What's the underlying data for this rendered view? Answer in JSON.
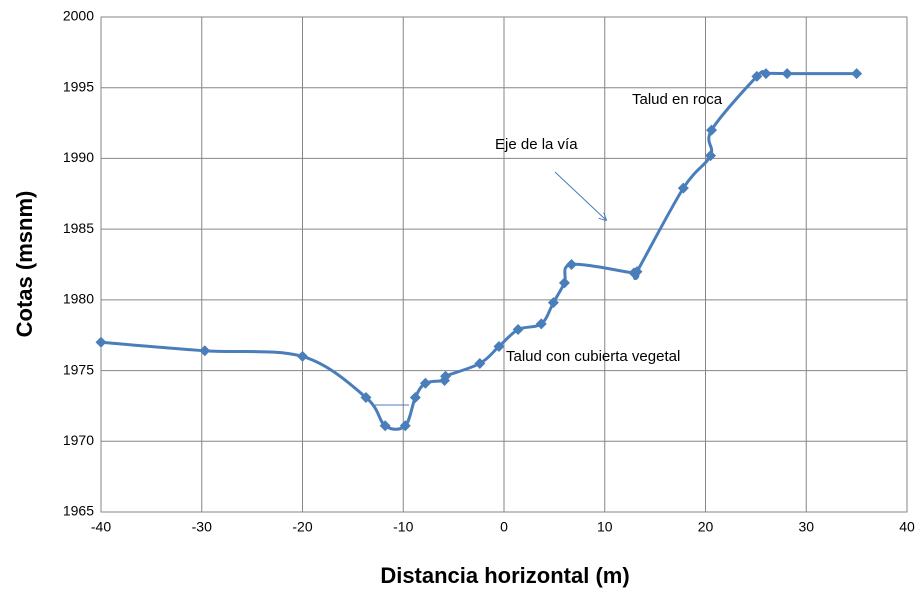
{
  "chart_data": {
    "type": "line",
    "xlabel": "Distancia horizontal (m)",
    "ylabel": "Cotas (msnm)",
    "x": [
      -40,
      -29.7,
      -20,
      -13.7,
      -11.8,
      -9.8,
      -8.8,
      -7.8,
      -5.9,
      -5.8,
      -2.4,
      -0.5,
      1.4,
      3.7,
      4.9,
      6.0,
      6.7,
      12.9,
      13.2,
      17.8,
      20.5,
      20.6,
      25.1,
      26.0,
      28.1,
      35.0
    ],
    "series": [
      {
        "color": "#4a7ebb",
        "values": [
          1977.0,
          1976.4,
          1976.0,
          1973.1,
          1971.1,
          1971.1,
          1973.1,
          1974.1,
          1974.3,
          1974.6,
          1975.5,
          1976.7,
          1977.9,
          1978.3,
          1979.8,
          1981.2,
          1982.5,
          1981.9,
          1982.0,
          1987.9,
          1990.2,
          1992.0,
          1995.8,
          1996.0,
          1996.0,
          1996.0
        ]
      }
    ],
    "xlim": [
      -40,
      40
    ],
    "xticks": [
      -40,
      -30,
      -20,
      -10,
      0,
      10,
      20,
      30,
      40
    ],
    "ylim": [
      1965,
      2000
    ],
    "yticks": [
      1965,
      1970,
      1975,
      1980,
      1985,
      1990,
      1995,
      2000
    ],
    "grid": true,
    "annotations": [
      "Talud en roca",
      "Eje de la vía",
      "Talud con cubierta vegetal"
    ]
  }
}
